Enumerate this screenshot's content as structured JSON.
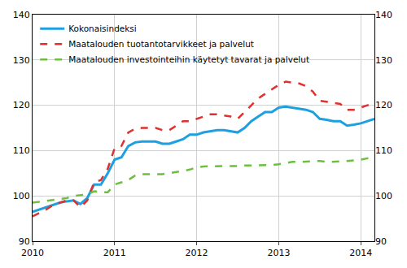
{
  "chart_data": {
    "type": "line",
    "categories": [
      "2010",
      null,
      null,
      null,
      null,
      null,
      null,
      null,
      null,
      null,
      null,
      null,
      "2011",
      null,
      null,
      null,
      null,
      null,
      null,
      null,
      null,
      null,
      null,
      null,
      "2012",
      null,
      null,
      null,
      null,
      null,
      null,
      null,
      null,
      null,
      null,
      null,
      "2013",
      null,
      null,
      null,
      null,
      null,
      null,
      null,
      null,
      null,
      null,
      null,
      "2014",
      null,
      null
    ],
    "series": [
      {
        "name": "Kokonaisindeksi",
        "color": "#1ea0e0",
        "line_style": "solid",
        "values": [
          96.5,
          97,
          97.5,
          98,
          98.5,
          98.8,
          99,
          98.2,
          99.5,
          102.5,
          102.5,
          105,
          108,
          108.5,
          111,
          111.8,
          112,
          112,
          112,
          111.5,
          111.5,
          112,
          112.5,
          113.5,
          113.5,
          114,
          114.3,
          114.5,
          114.5,
          114.3,
          114,
          115,
          116.5,
          117.5,
          118.5,
          118.5,
          119.5,
          119.7,
          119.5,
          119.2,
          119,
          118.5,
          117,
          116.8,
          116.5,
          116.5,
          115.5,
          115.7,
          116,
          116.5,
          117
        ]
      },
      {
        "name": "Maatalouden tuotantotarvikkeet ja palvelut",
        "color": "#e03030",
        "line_style": "dashed",
        "values": [
          95.5,
          96.2,
          97,
          98,
          98.5,
          99,
          99,
          97.5,
          99,
          103,
          103.5,
          106,
          110.5,
          111,
          114,
          114.8,
          115,
          115,
          115,
          114.5,
          114.5,
          115.5,
          116.5,
          116.5,
          117,
          117.5,
          118,
          118,
          117.8,
          117.5,
          117,
          118.5,
          120,
          121.5,
          122.5,
          123.5,
          124.5,
          125.2,
          125,
          124.8,
          124.2,
          123,
          121,
          120.8,
          120.5,
          120.3,
          119,
          119,
          119.5,
          120,
          120.5
        ]
      },
      {
        "name": "Maatalouden investointeihin käytetyt tavarat ja palvelut",
        "color": "#6cbf3f",
        "line_style": "dashed",
        "values": [
          98.5,
          98.7,
          98.8,
          99,
          99.2,
          99.5,
          100,
          100.2,
          100.3,
          101,
          100.8,
          100.8,
          102.5,
          103,
          103.5,
          104.5,
          104.8,
          104.8,
          104.8,
          104.8,
          105,
          105.2,
          105.5,
          105.8,
          106.3,
          106.5,
          106.5,
          106.5,
          106.5,
          106.5,
          106.6,
          106.7,
          106.7,
          106.7,
          106.7,
          106.8,
          107,
          107.2,
          107.5,
          107.5,
          107.6,
          107.7,
          107.7,
          107.5,
          107.5,
          107.6,
          107.7,
          107.8,
          108,
          108.3,
          108.5
        ]
      }
    ],
    "ylim": [
      90,
      140
    ],
    "yticks": [
      90,
      100,
      110,
      120,
      130,
      140
    ],
    "grid": true,
    "legend": "upper left"
  }
}
